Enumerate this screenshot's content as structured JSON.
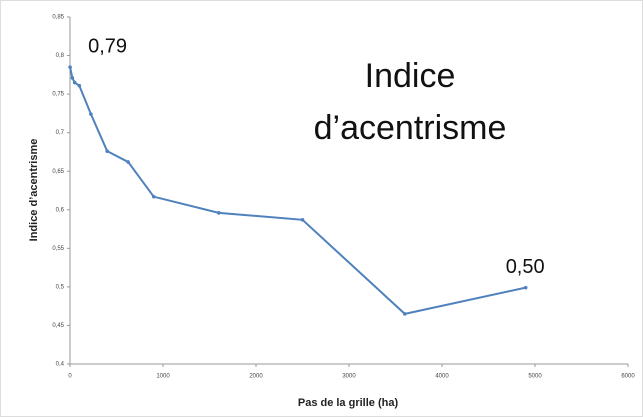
{
  "chart_data": {
    "type": "line",
    "title": [
      "Indice",
      "d’acentrisme"
    ],
    "x_label": "Pas de la grille (ha)",
    "y_label": "Indice d’acentrisme",
    "x": [
      1,
      25,
      50,
      100,
      225,
      400,
      625,
      900,
      1600,
      2500,
      3600,
      4900
    ],
    "series": [
      {
        "name": "Indice d’acentrisme",
        "color": "#4f81bd",
        "values": [
          0.785,
          0.771,
          0.765,
          0.761,
          0.724,
          0.676,
          0.662,
          0.617,
          0.596,
          0.587,
          0.465,
          0.499
        ]
      }
    ],
    "xlim": [
      0,
      6000
    ],
    "xticks": [
      0,
      1000,
      2000,
      3000,
      4000,
      5000,
      6000
    ],
    "ylim": [
      0.4,
      0.85
    ],
    "yticks": [
      {
        "value": 0.4,
        "label": "0,4"
      },
      {
        "value": 0.45,
        "label": "0,45"
      },
      {
        "value": 0.5,
        "label": "0,5"
      },
      {
        "value": 0.55,
        "label": "0,55"
      },
      {
        "value": 0.6,
        "label": "0,6"
      },
      {
        "value": 0.65,
        "label": "0,65"
      },
      {
        "value": 0.7,
        "label": "0,7"
      },
      {
        "value": 0.75,
        "label": "0,75"
      },
      {
        "value": 0.8,
        "label": "0,8"
      },
      {
        "value": 0.85,
        "label": "0,85"
      }
    ],
    "annotations": [
      {
        "text": "0,79",
        "x": 1,
        "y": 0.785
      },
      {
        "text": "0,50",
        "x": 4900,
        "y": 0.499
      }
    ],
    "grid": false
  }
}
